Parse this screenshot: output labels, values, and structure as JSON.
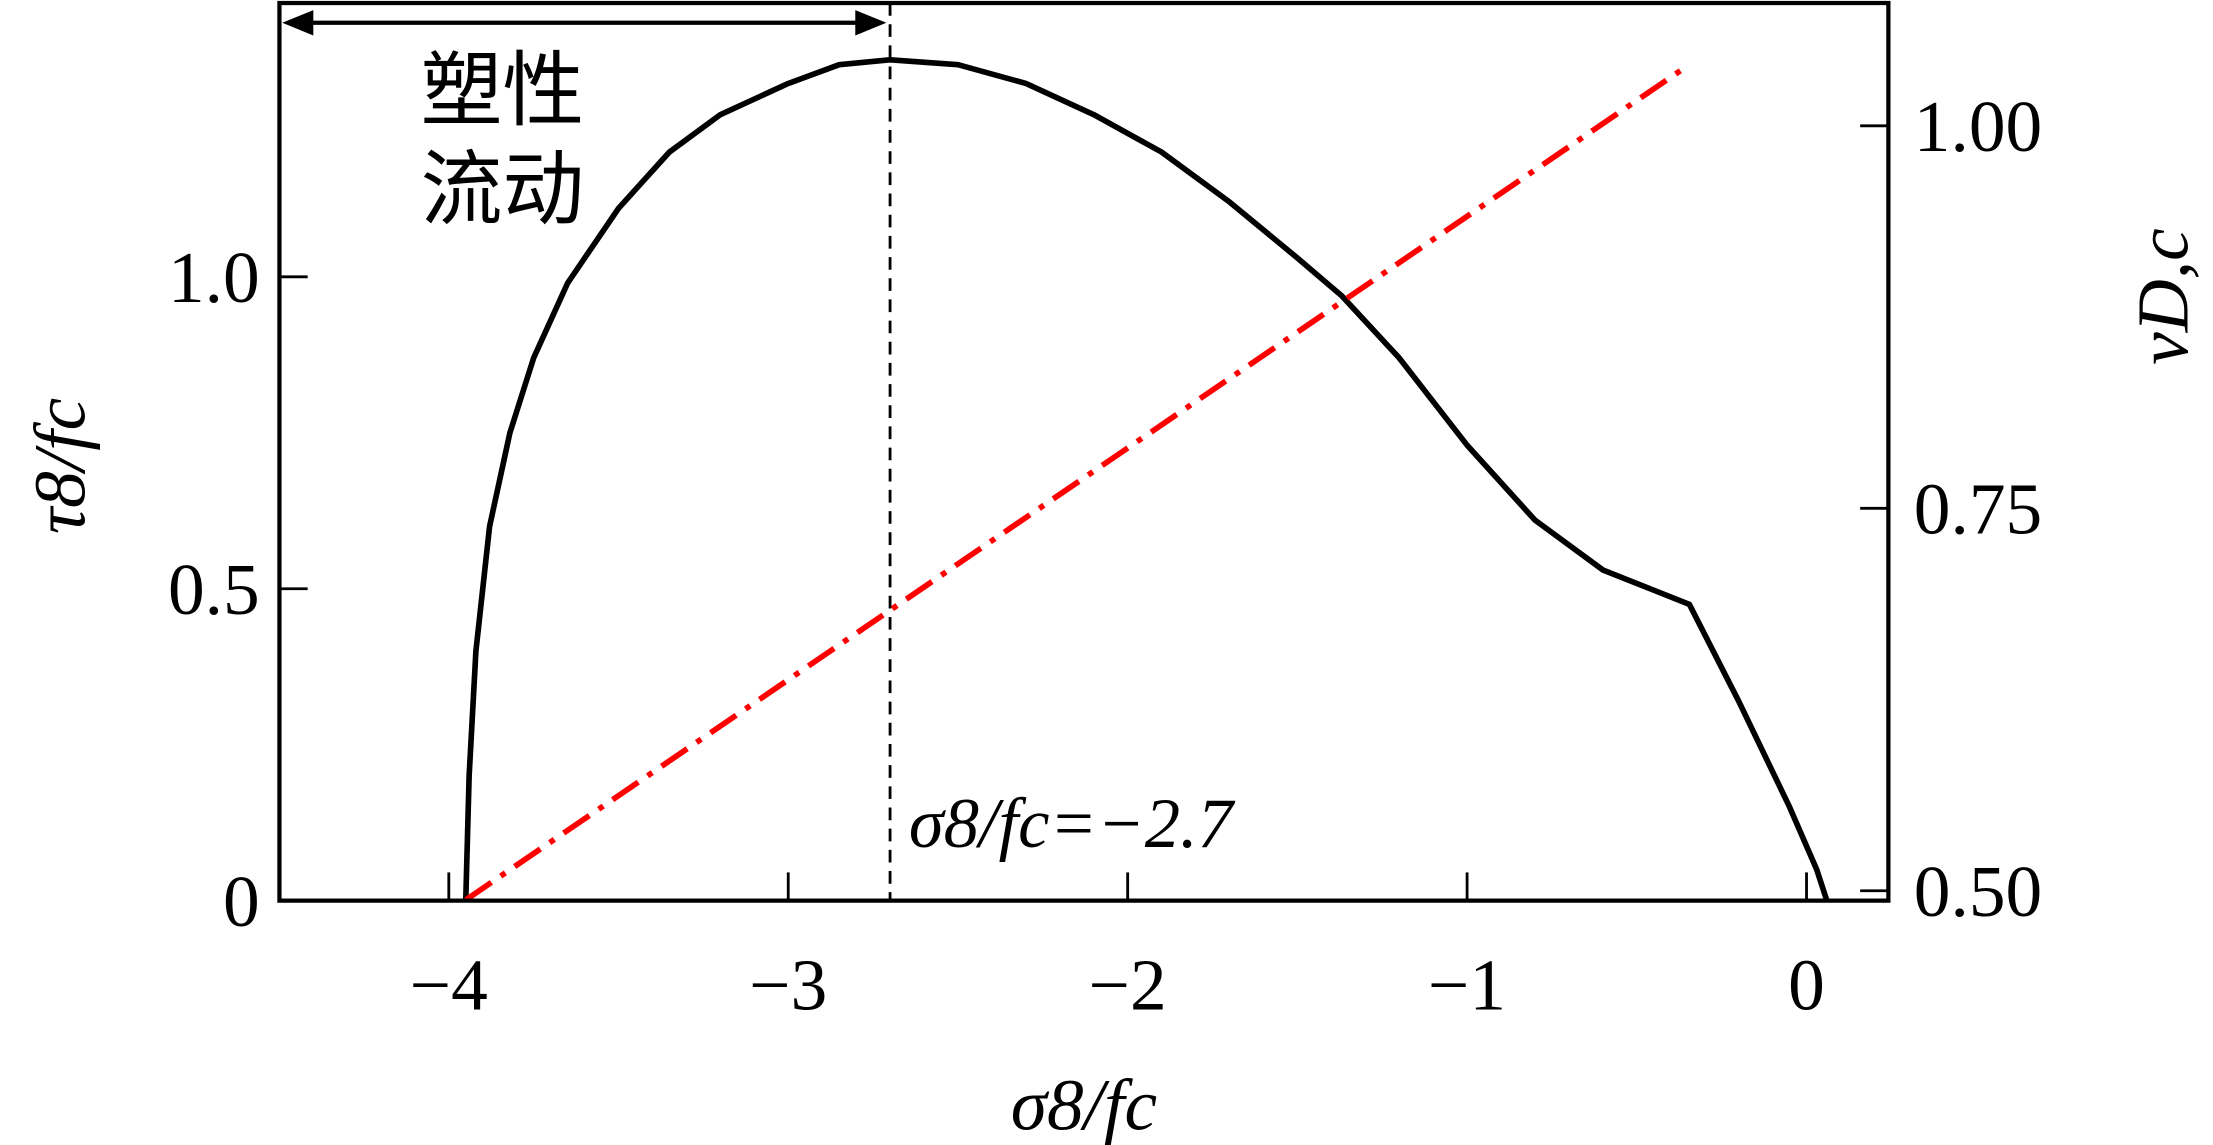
{
  "chart_data": {
    "type": "line",
    "xlabel": "σ8/fc",
    "ylabel_left": "τ8/fc",
    "ylabel_right": "vD,c",
    "xlim": [
      -4.5,
      0.25
    ],
    "ylim_left": [
      0,
      1.43
    ],
    "ylim_right": [
      0.494,
      1.08
    ],
    "x_ticks": [
      -4,
      -3,
      -2,
      -1,
      0
    ],
    "x_tick_labels": [
      "−4",
      "−3",
      "−2",
      "−1",
      "0"
    ],
    "y_left_ticks": [
      0,
      0.5,
      1.0
    ],
    "y_left_tick_labels": [
      "0",
      "0.5",
      "1.0"
    ],
    "y_right_ticks": [
      0.5,
      0.75,
      1.0
    ],
    "y_right_tick_labels": [
      "0.50",
      "0.75",
      "1.00"
    ],
    "grid": false,
    "series": [
      {
        "axis": "left",
        "color": "#000000",
        "style": "solid",
        "x": [
          -3.95,
          -3.94,
          -3.92,
          -3.88,
          -3.82,
          -3.75,
          -3.65,
          -3.5,
          -3.35,
          -3.2,
          -3.0,
          -2.85,
          -2.7,
          -2.5,
          -2.3,
          -2.1,
          -1.9,
          -1.7,
          -1.5,
          -1.37,
          -1.2,
          -1.0,
          -0.8,
          -0.6,
          -0.345,
          -0.2,
          -0.05,
          0.03,
          0.06
        ],
        "y": [
          0.0,
          0.2,
          0.4,
          0.6,
          0.75,
          0.87,
          0.99,
          1.11,
          1.2,
          1.26,
          1.31,
          1.34,
          1.348,
          1.34,
          1.31,
          1.26,
          1.2,
          1.12,
          1.03,
          0.97,
          0.87,
          0.73,
          0.61,
          0.53,
          0.475,
          0.32,
          0.15,
          0.05,
          0.0
        ]
      },
      {
        "axis": "right",
        "color": "#ff0000",
        "style": "dash-dot",
        "x": [
          -3.95,
          -0.345
        ],
        "y": [
          0.494,
          1.04
        ]
      }
    ],
    "annotations": {
      "plastic_flow_label_line1": "塑性",
      "plastic_flow_label_line2": "流动",
      "threshold_label": "σ8/fc=−2.7",
      "threshold_x": -2.7
    }
  }
}
